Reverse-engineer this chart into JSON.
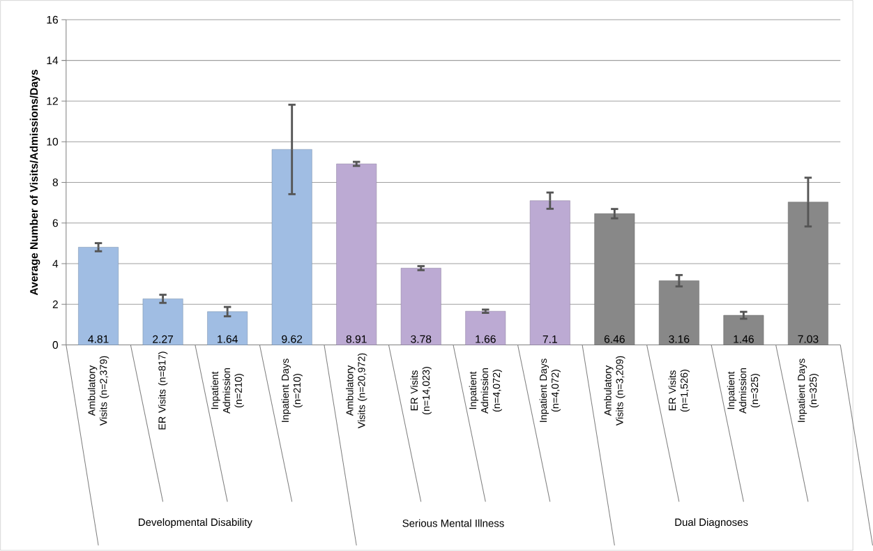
{
  "chart_data": {
    "type": "bar",
    "ylabel": "Average Number of Visits/Admissions/Days",
    "categories": [
      "Ambulatory Visits (n=2,379)",
      "ER Visits (n=817)",
      "Inpatient Admission (n=210)",
      "Inpatient Days (n=210)",
      "Ambulatory Visits (n=20,972)",
      "ER Visits (n=14,023)",
      "Inpatient Admission (n=4,072)",
      "Inpatient Days (n=4,072)",
      "Ambulatory Visits (n=3,209)",
      "ER Visits (n=1,526)",
      "Inpatient Admission (n=325)",
      "Inpatient Days (n=325)"
    ],
    "values": [
      4.81,
      2.27,
      1.64,
      9.62,
      8.91,
      3.78,
      1.66,
      7.1,
      6.46,
      3.16,
      1.46,
      7.03
    ],
    "errors": [
      0.2,
      0.2,
      0.23,
      2.2,
      0.1,
      0.1,
      0.08,
      0.4,
      0.23,
      0.28,
      0.17,
      1.2
    ],
    "colors": [
      "#a0bde3",
      "#a0bde3",
      "#a0bde3",
      "#a0bde3",
      "#bcaad3",
      "#bcaad3",
      "#bcaad3",
      "#bcaad3",
      "#888888",
      "#888888",
      "#888888",
      "#888888"
    ],
    "annotations": [
      "Developmental Disability",
      "Serious Mental Illness",
      "Dual Diagnoses"
    ],
    "ylim": [
      0,
      16
    ],
    "yticks": [
      0,
      2,
      4,
      6,
      8,
      10,
      12,
      14,
      16
    ],
    "grid": "y",
    "data_labels": true
  }
}
